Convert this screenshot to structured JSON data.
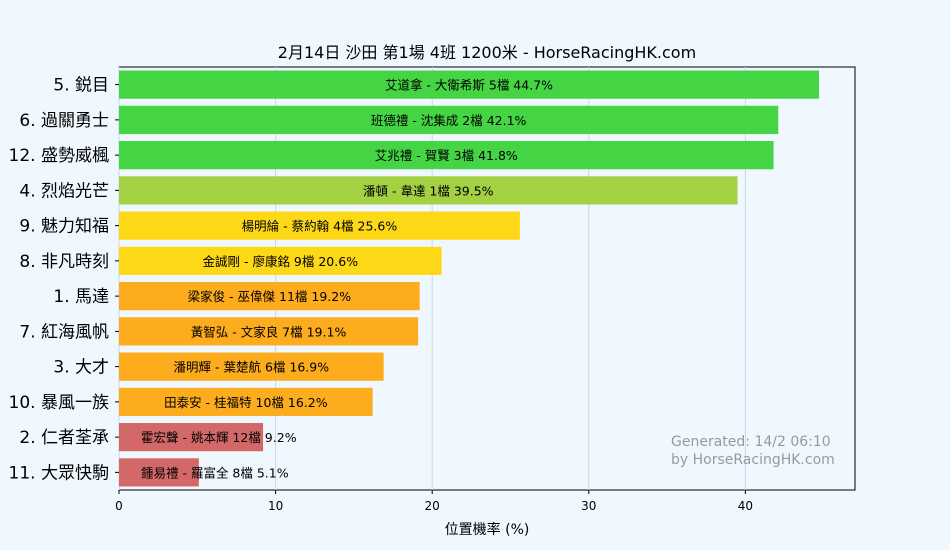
{
  "chart_data": {
    "type": "bar",
    "orientation": "horizontal",
    "title": "2月14日  沙田  第1場  4班  1200米 - HorseRacingHK.com",
    "xlabel": "位置機率 (%)",
    "ylabel": "",
    "xlim": [
      0,
      47
    ],
    "xticks": [
      "0",
      "10",
      "20",
      "30",
      "40"
    ],
    "grid": "vertical",
    "categories": [
      "5. 鋭目",
      "6. 過關勇士",
      "12. 盛勢威楓",
      "4. 烈焰光芒",
      "9. 魅力知福",
      "8. 非凡時刻",
      "1. 馬達",
      "7. 紅海風帆",
      "3. 大才",
      "10. 暴風一族",
      "2. 仁者荃承",
      "11. 大眾快駒"
    ],
    "values": [
      44.7,
      42.1,
      41.8,
      39.5,
      25.6,
      20.6,
      19.2,
      19.1,
      16.9,
      16.2,
      9.2,
      5.1
    ],
    "labels": [
      "艾道拿 - 大衛希斯 5檔  44.7%",
      "班德禮 - 沈集成 2檔  42.1%",
      "艾兆禮 - 賀賢 3檔  41.8%",
      "潘頓 - 韋達 1檔  39.5%",
      "楊明綸 - 蔡約翰 4檔  25.6%",
      "金誠剛 - 廖康銘 9檔  20.6%",
      "梁家俊 - 巫偉傑 11檔  19.2%",
      "黃智弘 - 文家良 7檔  19.1%",
      "潘明輝 - 葉楚航 6檔  16.9%",
      "田泰安 - 桂福特 10檔  16.2%",
      "霍宏聲 - 姚本輝 12檔  9.2%",
      "鍾易禮 - 羅富全 8檔  5.1%"
    ],
    "colors": [
      "#44d444",
      "#44d444",
      "#44d444",
      "#a4d044",
      "#fcd817",
      "#fcd817",
      "#fcac1c",
      "#fcac1c",
      "#fcac1c",
      "#fcac1c",
      "#d46868",
      "#d46868"
    ],
    "watermark": [
      "Generated: 14/2 06:10",
      "by HorseRacingHK.com"
    ]
  }
}
